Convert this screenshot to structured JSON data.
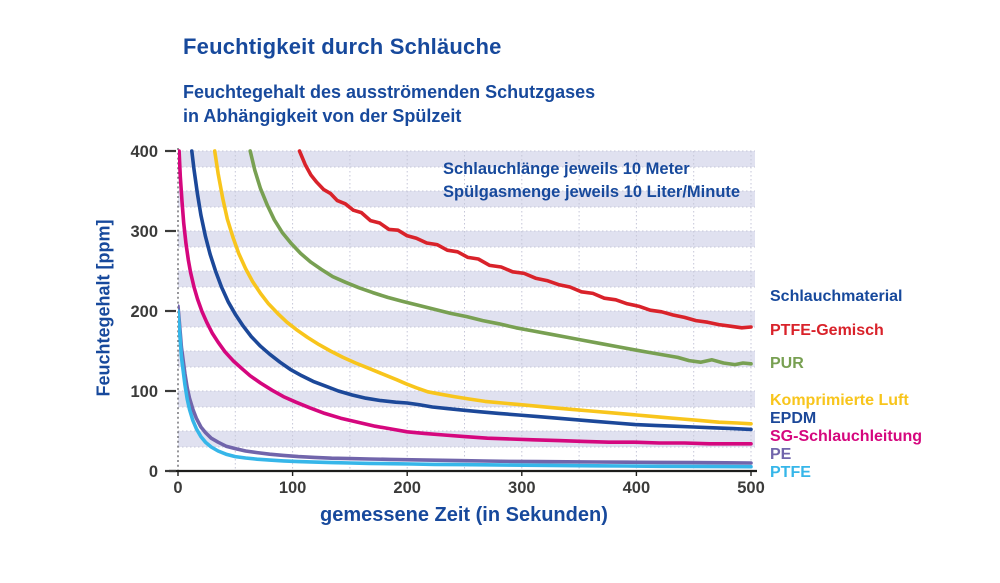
{
  "header": {
    "title": "Feuchtigkeit durch Schläuche",
    "subtitle_line1": "Feuchtegehalt des ausströmenden Schutzgases",
    "subtitle_line2": "in Abhängigkeit von der Spülzeit"
  },
  "annotation": {
    "line1": "Schlauchlänge jeweils 10 Meter",
    "line2": "Spülgasmenge jeweils 10 Liter/Minute"
  },
  "colors": {
    "heading_blue": "#17499C",
    "tick_text": "#3B3B3A",
    "band": "#E0E1F0",
    "grid_dots": "#C5C6D8",
    "zero_line_dots": "#5F5F64",
    "axis": "#1D1D1B"
  },
  "chart_data": {
    "type": "line",
    "title": "Feuchtigkeit durch Schläuche",
    "xlabel": "gemessene Zeit (in Sekunden)",
    "ylabel": "Feuchtegehalt [ppm]",
    "xlim": [
      0,
      500
    ],
    "ylim": [
      0,
      400
    ],
    "x_ticks": [
      0,
      100,
      200,
      300,
      400,
      500
    ],
    "y_ticks": [
      0,
      100,
      200,
      300,
      400
    ],
    "grid": {
      "x_dotted_every_s": 50,
      "bands": "lavender stripes 20 ppm tall, tops at each 50 ppm multiple (400,350,...,50)",
      "legend_position": "right"
    },
    "legend_title": "Schlauchmaterial",
    "series": [
      {
        "name": "PTFE-Gemisch",
        "color": "#D9222A",
        "x": [
          106,
          111,
          116,
          121,
          127,
          133,
          139,
          146,
          153,
          160,
          168,
          176,
          184,
          192,
          200,
          208,
          217,
          226,
          235,
          244,
          253,
          262,
          272,
          282,
          292,
          302,
          312,
          322,
          332,
          342,
          352,
          362,
          372,
          382,
          392,
          402,
          412,
          422,
          432,
          442,
          452,
          462,
          472,
          482,
          492,
          500
        ],
        "y": [
          400,
          383,
          370,
          361,
          352,
          347,
          338,
          334,
          326,
          323,
          313,
          310,
          302,
          301,
          294,
          291,
          285,
          283,
          276,
          274,
          267,
          265,
          257,
          255,
          249,
          247,
          241,
          238,
          233,
          230,
          224,
          222,
          216,
          214,
          209,
          206,
          201,
          199,
          195,
          192,
          188,
          186,
          183,
          181,
          179,
          180
        ]
      },
      {
        "name": "PUR",
        "color": "#78A052",
        "x": [
          63,
          67,
          72,
          78,
          84,
          91,
          99,
          107,
          116,
          125,
          135,
          146,
          158,
          170,
          183,
          196,
          210,
          224,
          238,
          252,
          266,
          280,
          295,
          310,
          325,
          340,
          355,
          370,
          385,
          400,
          412,
          424,
          436,
          446,
          456,
          466,
          476,
          486,
          493,
          500
        ],
        "y": [
          400,
          376,
          353,
          332,
          314,
          298,
          284,
          272,
          261,
          252,
          243,
          236,
          229,
          223,
          217,
          212,
          207,
          202,
          197,
          193,
          188,
          184,
          179,
          175,
          171,
          167,
          163,
          159,
          155,
          151,
          148,
          145,
          142,
          138,
          136,
          139,
          135,
          133,
          135,
          134
        ]
      },
      {
        "name": "Komprimierte Luft",
        "color": "#F8C51C",
        "x": [
          32,
          35,
          39,
          43,
          48,
          53,
          59,
          65,
          72,
          79,
          87,
          95,
          104,
          113,
          123,
          133,
          144,
          155,
          167,
          179,
          191,
          199,
          208,
          218,
          229,
          241,
          254,
          268,
          283,
          298,
          313,
          328,
          344,
          360,
          376,
          392,
          408,
          424,
          440,
          456,
          472,
          488,
          500
        ],
        "y": [
          400,
          372,
          341,
          315,
          292,
          272,
          253,
          237,
          222,
          209,
          197,
          186,
          176,
          167,
          158,
          150,
          142,
          135,
          128,
          121,
          114,
          109,
          104,
          99,
          96,
          93,
          90,
          87,
          85,
          83,
          81,
          79,
          77,
          75,
          73,
          71,
          69,
          67,
          65,
          63,
          61,
          60,
          59
        ]
      },
      {
        "name": "EPDM",
        "color": "#1C4899",
        "x": [
          12,
          14,
          17,
          20,
          24,
          28,
          33,
          38,
          44,
          50,
          57,
          64,
          72,
          80,
          89,
          98,
          108,
          118,
          129,
          140,
          152,
          164,
          177,
          190,
          200,
          210,
          222,
          235,
          249,
          264,
          280,
          297,
          314,
          331,
          348,
          365,
          382,
          399,
          416,
          433,
          450,
          467,
          484,
          500
        ],
        "y": [
          400,
          377,
          346,
          320,
          293,
          271,
          249,
          230,
          211,
          196,
          181,
          168,
          156,
          146,
          136,
          127,
          119,
          112,
          106,
          100,
          95,
          91,
          88,
          86,
          85,
          83,
          80,
          78,
          76,
          74,
          72,
          70,
          68,
          66,
          64,
          62,
          60,
          58,
          57,
          56,
          55,
          54,
          53,
          52
        ]
      },
      {
        "name": "SG-Schlauchleitung",
        "color": "#D5077E",
        "x": [
          1,
          2,
          3.5,
          5,
          7,
          9,
          11,
          14,
          17,
          21,
          25,
          30,
          35,
          41,
          48,
          55,
          63,
          72,
          82,
          92,
          103,
          115,
          128,
          142,
          157,
          172,
          188,
          200,
          215,
          232,
          250,
          270,
          290,
          310,
          332,
          354,
          376,
          398,
          420,
          442,
          464,
          482,
          500
        ],
        "y": [
          400,
          368,
          337,
          310,
          284,
          264,
          248,
          230,
          215,
          199,
          186,
          172,
          161,
          149,
          138,
          129,
          119,
          110,
          101,
          93,
          86,
          79,
          72,
          66,
          61,
          56,
          52,
          49,
          47,
          45,
          43,
          41,
          40,
          39,
          38,
          37,
          36,
          36,
          35,
          35,
          34,
          34,
          34
        ]
      },
      {
        "name": "PE",
        "color": "#7165AB",
        "x": [
          0,
          1,
          2,
          3,
          4.5,
          6,
          8,
          10,
          13,
          16,
          20,
          24,
          29,
          35,
          42,
          50,
          59,
          69,
          80,
          92,
          105,
          119,
          134,
          150,
          167,
          185,
          204,
          224,
          245,
          267,
          290,
          314,
          339,
          365,
          392,
          420,
          449,
          478,
          500
        ],
        "y": [
          206,
          190,
          172,
          155,
          138,
          122,
          104,
          91,
          77,
          66,
          55,
          48,
          41,
          36,
          31,
          28,
          25,
          23,
          21,
          19.5,
          18,
          17,
          16,
          15.5,
          15,
          14.5,
          14,
          13.5,
          13,
          12.5,
          12,
          11.8,
          11.5,
          11.2,
          11,
          10.8,
          10.5,
          10.2,
          10
        ]
      },
      {
        "name": "PTFE",
        "color": "#36B6E9",
        "x": [
          0,
          1,
          2,
          3,
          4.5,
          6,
          8,
          10,
          13,
          16,
          20,
          24,
          29,
          35,
          42,
          50,
          59,
          69,
          80,
          92,
          105,
          119,
          134,
          150,
          167,
          185,
          204,
          224,
          245,
          267,
          290,
          314,
          339,
          365,
          392,
          420,
          449,
          478,
          500
        ],
        "y": [
          200,
          182,
          162,
          143,
          125,
          108,
          90,
          77,
          63,
          53,
          43,
          36,
          30,
          25,
          21,
          18,
          16.2,
          14.8,
          13.6,
          12.6,
          11.8,
          11.1,
          10.5,
          10,
          9.5,
          9.1,
          8.7,
          8.3,
          8,
          7.7,
          7.4,
          7.1,
          6.8,
          6.5,
          6.2,
          5.9,
          5.7,
          5.5,
          5.4
        ]
      }
    ],
    "legend": {
      "title": "Schlauchmaterial",
      "title_color": "#17499C",
      "items": [
        {
          "label": "PTFE-Gemisch",
          "color": "#D9222A"
        },
        {
          "label": "PUR",
          "color": "#78A052"
        },
        {
          "label": "Komprimierte Luft",
          "color": "#F8C51C"
        },
        {
          "label": "EPDM",
          "color": "#1C4899"
        },
        {
          "label": "SG-Schlauchleitung",
          "color": "#D5077E"
        },
        {
          "label": "PE",
          "color": "#7165AB"
        },
        {
          "label": "PTFE",
          "color": "#36B6E9"
        }
      ]
    }
  }
}
